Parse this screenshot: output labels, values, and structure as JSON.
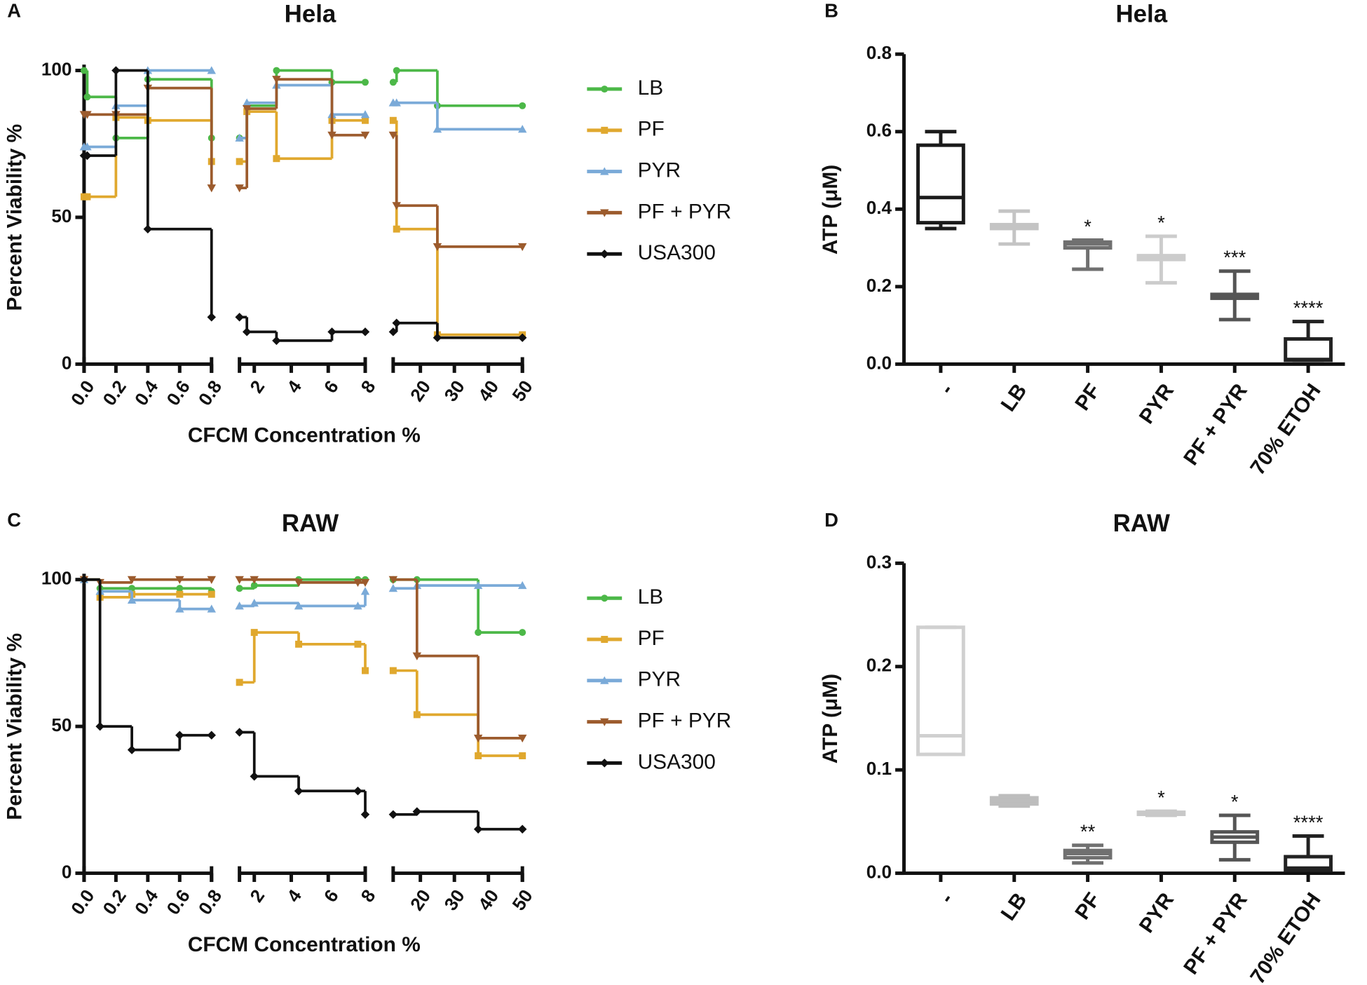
{
  "chart_data": [
    {
      "panel": "A",
      "type": "line",
      "title": "Hela",
      "x_label": "CFCM Concentration %",
      "y_label": "Percent Viability %",
      "ylim": [
        0,
        102
      ],
      "yticks": [
        0,
        50,
        100
      ],
      "segments": [
        {
          "xlim": [
            0,
            0.8
          ],
          "xticks": [
            {
              "value": 0,
              "label": "0.0"
            },
            0.2,
            0.4,
            0.6,
            0.8
          ]
        },
        {
          "xlim": [
            1.2,
            8
          ],
          "xticks": [
            2,
            4,
            6,
            8
          ]
        },
        {
          "xlim": [
            12,
            50
          ],
          "xticks": [
            20,
            30,
            40,
            50
          ]
        }
      ],
      "x": [
        0,
        0.02,
        0.2,
        0.4,
        0.8,
        1.2,
        1.6,
        3.2,
        6.2,
        8,
        12,
        13,
        25,
        50
      ],
      "series": [
        {
          "name": "LB",
          "color": "#4cb848",
          "marker": "circle",
          "values": [
            100,
            91,
            77,
            97,
            77,
            77,
            88,
            100,
            96,
            96,
            96,
            100,
            88,
            88
          ]
        },
        {
          "name": "PF",
          "color": "#e0a82e",
          "marker": "square",
          "values": [
            57,
            57,
            84,
            83,
            69,
            69,
            86,
            70,
            83,
            83,
            83,
            46,
            10,
            10
          ]
        },
        {
          "name": "PYR",
          "color": "#7aaad8",
          "marker": "triangle",
          "values": [
            74,
            74,
            88,
            100,
            100,
            77,
            89,
            95,
            85,
            85,
            89,
            89,
            80,
            80
          ]
        },
        {
          "name": "PF + PYR",
          "color": "#9c5b2d",
          "marker": "triangle-down",
          "values": [
            85,
            85,
            85,
            94,
            60,
            60,
            87,
            97,
            78,
            78,
            78,
            54,
            40,
            40
          ]
        },
        {
          "name": "USA300",
          "color": "#111111",
          "marker": "diamond",
          "values": [
            71,
            71,
            100,
            46,
            16,
            16,
            11,
            8,
            11,
            11,
            11,
            14,
            9,
            9
          ]
        }
      ]
    },
    {
      "panel": "B",
      "type": "box",
      "title": "Hela",
      "y_label": "ATP (μM)",
      "ylim": [
        0,
        0.8
      ],
      "yticks": [
        {
          "value": 0,
          "label": "0.0"
        },
        0.2,
        0.4,
        0.6,
        0.8
      ],
      "categories": [
        "-",
        "LB",
        "PF",
        "PYR",
        "PF + PYR",
        "70% ETOH"
      ],
      "min": [
        0.35,
        0.31,
        0.245,
        0.21,
        0.115,
        0.01
      ],
      "q1": [
        0.365,
        0.35,
        0.3,
        0.27,
        0.17,
        0.01
      ],
      "median": [
        0.43,
        0.355,
        0.31,
        0.275,
        0.175,
        0.012
      ],
      "q3": [
        0.565,
        0.36,
        0.315,
        0.28,
        0.18,
        0.065
      ],
      "max": [
        0.6,
        0.395,
        0.32,
        0.33,
        0.24,
        0.11
      ],
      "colors": [
        "#1a1a1a",
        "#c4c4c4",
        "#707070",
        "#cccccc",
        "#555555",
        "#222222"
      ],
      "significance": [
        null,
        null,
        "*",
        "*",
        "***",
        "****"
      ]
    },
    {
      "panel": "C",
      "type": "line",
      "title": "RAW",
      "x_label": "CFCM Concentration %",
      "y_label": "Percent Viability %",
      "ylim": [
        0,
        102
      ],
      "yticks": [
        0,
        50,
        100
      ],
      "segments": [
        {
          "xlim": [
            0,
            0.8
          ],
          "xticks": [
            {
              "value": 0,
              "label": "0.0"
            },
            0.2,
            0.4,
            0.6,
            0.8
          ]
        },
        {
          "xlim": [
            1.2,
            8
          ],
          "xticks": [
            2,
            4,
            6,
            8
          ]
        },
        {
          "xlim": [
            12,
            50
          ],
          "xticks": [
            20,
            30,
            40,
            50
          ]
        }
      ],
      "x": [
        0,
        0.1,
        0.3,
        0.6,
        0.8,
        1.2,
        2,
        4.4,
        7.6,
        8,
        12,
        19,
        37,
        50
      ],
      "series": [
        {
          "name": "LB",
          "color": "#4cb848",
          "marker": "circle",
          "values": [
            100,
            97,
            97,
            97,
            96,
            97,
            98,
            100,
            100,
            100,
            100,
            100,
            82,
            82
          ]
        },
        {
          "name": "PF",
          "color": "#e0a82e",
          "marker": "square",
          "values": [
            100,
            94,
            95,
            95,
            95,
            65,
            82,
            78,
            78,
            69,
            69,
            54,
            40,
            40
          ]
        },
        {
          "name": "PYR",
          "color": "#7aaad8",
          "marker": "triangle",
          "values": [
            100,
            96,
            93,
            90,
            90,
            91,
            92,
            91,
            91,
            96,
            97,
            98,
            98,
            98
          ]
        },
        {
          "name": "PF + PYR",
          "color": "#9c5b2d",
          "marker": "triangle-down",
          "values": [
            100,
            99,
            100,
            100,
            100,
            100,
            100,
            99,
            99,
            99,
            100,
            74,
            46,
            46
          ]
        },
        {
          "name": "USA300",
          "color": "#111111",
          "marker": "diamond",
          "values": [
            100,
            50,
            42,
            47,
            47,
            48,
            33,
            28,
            28,
            20,
            20,
            21,
            15,
            15
          ]
        }
      ]
    },
    {
      "panel": "D",
      "type": "box",
      "title": "RAW",
      "y_label": "ATP (μM)",
      "ylim": [
        0,
        0.3
      ],
      "yticks": [
        {
          "value": 0,
          "label": "0.0"
        },
        0.1,
        0.2,
        0.3
      ],
      "categories": [
        "-",
        "LB",
        "PF",
        "PYR",
        "PF + PYR",
        "70% ETOH"
      ],
      "min": [
        0.115,
        0.065,
        0.01,
        0.056,
        0.013,
        0.003
      ],
      "q1": [
        0.115,
        0.067,
        0.015,
        0.057,
        0.03,
        0.003
      ],
      "median": [
        0.133,
        0.07,
        0.019,
        0.058,
        0.035,
        0.005
      ],
      "q3": [
        0.238,
        0.073,
        0.022,
        0.059,
        0.04,
        0.016
      ],
      "max": [
        0.238,
        0.075,
        0.027,
        0.06,
        0.056,
        0.036
      ],
      "colors": [
        "#d0d0d0",
        "#bdbdbd",
        "#707070",
        "#c8c8c8",
        "#555555",
        "#222222"
      ],
      "significance": [
        null,
        "",
        "**",
        "*",
        "*",
        "****"
      ]
    }
  ]
}
